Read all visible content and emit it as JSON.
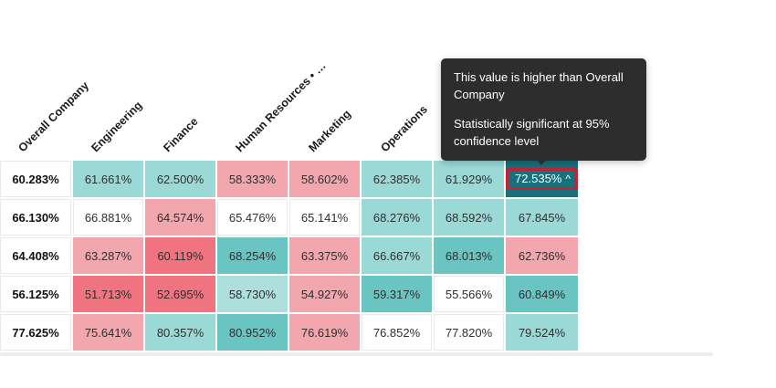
{
  "tooltip": {
    "line1": "This value is higher than Overall Company",
    "line2": "Statistically significant at 95% confidence level"
  },
  "heatmap": {
    "column_headers": [
      {
        "label": "Overall Company"
      },
      {
        "label": "Engineering"
      },
      {
        "label": "Finance"
      },
      {
        "label": "Human Resources • …"
      },
      {
        "label": "Marketing"
      },
      {
        "label": "Operations"
      },
      {
        "label": ""
      },
      {
        "label": ""
      }
    ],
    "rows": [
      {
        "cells": [
          {
            "value": "60.283%",
            "tone": "overall"
          },
          {
            "value": "61.661%",
            "tone": "teal"
          },
          {
            "value": "62.500%",
            "tone": "teal"
          },
          {
            "value": "58.333%",
            "tone": "pink"
          },
          {
            "value": "58.602%",
            "tone": "pink"
          },
          {
            "value": "62.385%",
            "tone": "teal"
          },
          {
            "value": "61.929%",
            "tone": "teal"
          },
          {
            "value": "72.535%",
            "tone": "teal_dark",
            "caret": "^",
            "highlighted": true
          }
        ]
      },
      {
        "cells": [
          {
            "value": "66.130%",
            "tone": "overall"
          },
          {
            "value": "66.881%",
            "tone": "white"
          },
          {
            "value": "64.574%",
            "tone": "pink"
          },
          {
            "value": "65.476%",
            "tone": "white"
          },
          {
            "value": "65.141%",
            "tone": "white"
          },
          {
            "value": "68.276%",
            "tone": "teal"
          },
          {
            "value": "68.592%",
            "tone": "teal"
          },
          {
            "value": "67.845%",
            "tone": "teal"
          }
        ]
      },
      {
        "cells": [
          {
            "value": "64.408%",
            "tone": "overall"
          },
          {
            "value": "63.287%",
            "tone": "pink"
          },
          {
            "value": "60.119%",
            "tone": "red"
          },
          {
            "value": "68.254%",
            "tone": "teal_mid"
          },
          {
            "value": "63.375%",
            "tone": "pink"
          },
          {
            "value": "66.667%",
            "tone": "teal"
          },
          {
            "value": "68.013%",
            "tone": "teal_mid"
          },
          {
            "value": "62.736%",
            "tone": "pink"
          }
        ]
      },
      {
        "cells": [
          {
            "value": "56.125%",
            "tone": "overall"
          },
          {
            "value": "51.713%",
            "tone": "red"
          },
          {
            "value": "52.695%",
            "tone": "red"
          },
          {
            "value": "58.730%",
            "tone": "teal_light"
          },
          {
            "value": "54.927%",
            "tone": "pink"
          },
          {
            "value": "59.317%",
            "tone": "teal_mid"
          },
          {
            "value": "55.566%",
            "tone": "white"
          },
          {
            "value": "60.849%",
            "tone": "teal_mid"
          }
        ]
      },
      {
        "cells": [
          {
            "value": "77.625%",
            "tone": "overall"
          },
          {
            "value": "75.641%",
            "tone": "pink"
          },
          {
            "value": "80.357%",
            "tone": "teal"
          },
          {
            "value": "80.952%",
            "tone": "teal_mid"
          },
          {
            "value": "76.619%",
            "tone": "pink"
          },
          {
            "value": "76.852%",
            "tone": "white"
          },
          {
            "value": "77.820%",
            "tone": "white"
          },
          {
            "value": "79.524%",
            "tone": "teal"
          }
        ]
      }
    ]
  },
  "colors": {
    "overall": "#ffffff",
    "white": "#ffffff",
    "pink": "#f2a6ae",
    "red": "#f0747f",
    "teal_light": "#ade0dd",
    "teal": "#9bd9d6",
    "teal_mid": "#6ac5c2",
    "teal_dark": "#17707b",
    "highlight_border": "#c22334",
    "tooltip_bg": "#2d2d2d"
  },
  "chart_data": {
    "type": "heatmap",
    "title": "",
    "columns": [
      "Overall Company",
      "Engineering",
      "Finance",
      "Human Resources • …",
      "Marketing",
      "Operations",
      "(hidden)",
      "(hidden)"
    ],
    "values": [
      [
        60.283,
        61.661,
        62.5,
        58.333,
        58.602,
        62.385,
        61.929,
        72.535
      ],
      [
        66.13,
        66.881,
        64.574,
        65.476,
        65.141,
        68.276,
        68.592,
        67.845
      ],
      [
        64.408,
        63.287,
        60.119,
        68.254,
        63.375,
        66.667,
        68.013,
        62.736
      ],
      [
        56.125,
        51.713,
        52.695,
        58.73,
        54.927,
        59.317,
        55.566,
        60.849
      ],
      [
        77.625,
        75.641,
        80.357,
        80.952,
        76.619,
        76.852,
        77.82,
        79.524
      ]
    ],
    "unit": "%",
    "legend_position": "none",
    "annotations": [
      "Cell 72.535% is highlighted (higher than Overall Company, significant at 95% confidence)"
    ]
  }
}
